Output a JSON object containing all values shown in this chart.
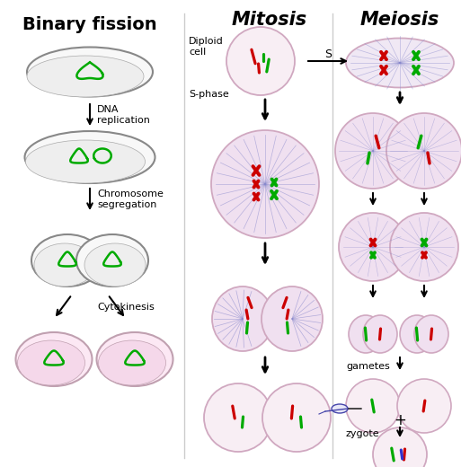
{
  "title_binary": "Binary fission",
  "title_mitosis": "Mitosis",
  "title_meiosis": "Meiosis",
  "label_dna": "DNA\nreplication",
  "label_chrom": "Chromosome\nsegregation",
  "label_cyto": "Cytokinesis",
  "label_diploid": "Diploid\ncell",
  "label_sphase": "S-phase",
  "label_gametes": "gametes",
  "label_zygote": "zygote",
  "label_s": "S",
  "bg_color": "#ffffff",
  "cell_fill_light": "#f5e6f0",
  "cell_fill_pink": "#f0d8e8",
  "cell_edge": "#c0a0b0",
  "bacteria_fill": "#ffffff",
  "bacteria_edge": "#888888",
  "green": "#00aa00",
  "red": "#cc0000",
  "blue": "#3333cc",
  "purple": "#9900cc",
  "arrow_color": "#000000",
  "text_color": "#000000",
  "spindle_color": "#8888cc"
}
